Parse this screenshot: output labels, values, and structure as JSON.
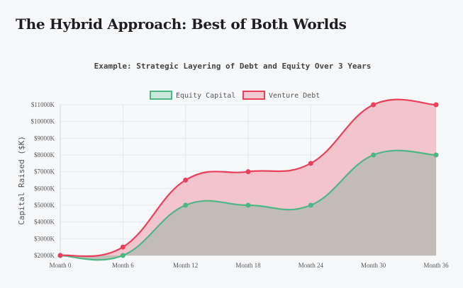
{
  "page": {
    "title": "The Hybrid Approach: Best of Both Worlds"
  },
  "chart_data": {
    "type": "area",
    "title": "Example: Strategic Layering of Debt and Equity Over 3 Years",
    "xlabel": "",
    "ylabel": "Capital Raised ($K)",
    "categories": [
      "Month 0",
      "Month 6",
      "Month 12",
      "Month 18",
      "Month 24",
      "Month 30",
      "Month 36"
    ],
    "ylim": [
      2000,
      11000
    ],
    "yticks": [
      2000,
      3000,
      4000,
      5000,
      6000,
      7000,
      8000,
      9000,
      10000,
      11000
    ],
    "ytick_format": "${v}K",
    "grid": true,
    "legend_position": "top",
    "series": [
      {
        "name": "Equity Capital",
        "values": [
          2000,
          2000,
          5000,
          5000,
          5000,
          8000,
          8000
        ],
        "color": "#4cb782",
        "fill": "#bfbcb4"
      },
      {
        "name": "Venture Debt",
        "values": [
          2000,
          2500,
          6500,
          7000,
          7500,
          11000,
          11000
        ],
        "color": "#e8405b",
        "fill": "#f1c1c9"
      }
    ]
  }
}
